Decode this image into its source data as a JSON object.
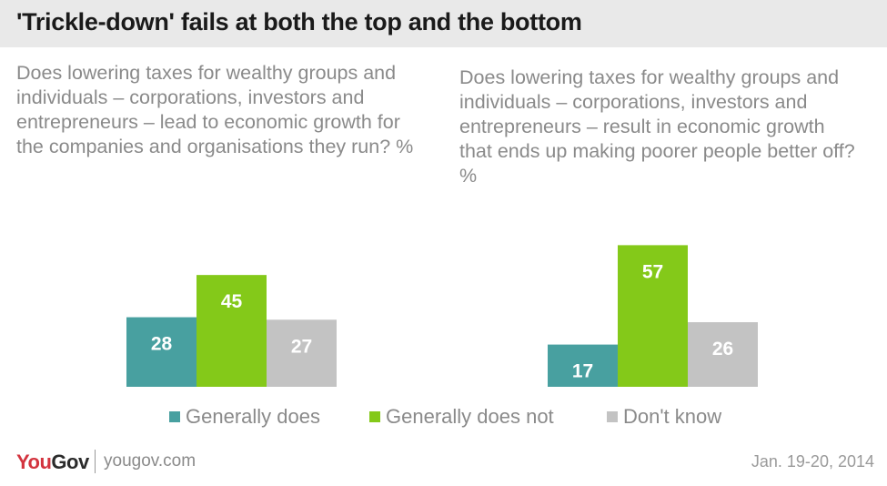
{
  "title": "'Trickle-down' fails at both the top and the bottom",
  "questions": {
    "left": "Does lowering taxes for wealthy groups and individuals – corporations, investors and entrepreneurs – lead to economic growth for the companies and organisations they run? %",
    "right": "Does lowering taxes for wealthy groups and individuals – corporations, investors and entrepreneurs – result in economic growth that ends up making poorer people better off? %"
  },
  "legend": {
    "items": [
      {
        "label": "Generally does",
        "color": "#48a0a0"
      },
      {
        "label": "Generally does not",
        "color": "#84c919"
      },
      {
        "label": "Don't know",
        "color": "#c3c3c3"
      }
    ]
  },
  "footer": {
    "logo_you": "You",
    "logo_gov": "Gov",
    "url": "yougov.com",
    "date": "Jan. 19-20, 2014"
  },
  "chart_data": [
    {
      "type": "bar",
      "categories": [
        "Generally does",
        "Generally does not",
        "Don't know"
      ],
      "values": [
        28,
        45,
        27
      ],
      "colors": [
        "#48a0a0",
        "#84c919",
        "#c3c3c3"
      ]
    },
    {
      "type": "bar",
      "categories": [
        "Generally does",
        "Generally does not",
        "Don't know"
      ],
      "values": [
        17,
        57,
        26
      ],
      "colors": [
        "#48a0a0",
        "#84c919",
        "#c3c3c3"
      ]
    }
  ]
}
